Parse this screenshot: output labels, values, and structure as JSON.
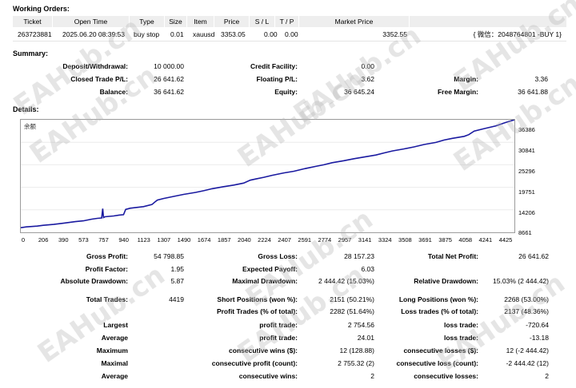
{
  "working_orders": {
    "title": "Working Orders:",
    "headers": [
      "Ticket",
      "Open Time",
      "Type",
      "Size",
      "Item",
      "Price",
      "S / L",
      "T / P",
      "Market Price",
      ""
    ],
    "row": [
      "263723881",
      "2025.06.20 08:39:53",
      "buy stop",
      "0.01",
      "xauusd",
      "3353.05",
      "0.00",
      "0.00",
      "3352.55",
      "{ 微信：2048764801 -BUY 1}"
    ]
  },
  "summary": {
    "title": "Summary:",
    "deposit_label": "Deposit/Withdrawal:",
    "deposit_value": "10 000.00",
    "credit_label": "Credit Facility:",
    "credit_value": "0.00",
    "closed_pl_label": "Closed Trade P/L:",
    "closed_pl_value": "26 641.62",
    "floating_label": "Floating P/L:",
    "floating_value": "3.62",
    "margin_label": "Margin:",
    "margin_value": "3.36",
    "balance_label": "Balance:",
    "balance_value": "36 641.62",
    "equity_label": "Equity:",
    "equity_value": "36 645.24",
    "free_margin_label": "Free Margin:",
    "free_margin_value": "36 641.88"
  },
  "details": {
    "title": "Details:",
    "rows": [
      {
        "c1l": "Gross Profit:",
        "c1v": "54 798.85",
        "c2l": "Gross Loss:",
        "c2v": "28 157.23",
        "c3l": "Total Net Profit:",
        "c3v": "26 641.62"
      },
      {
        "c1l": "Profit Factor:",
        "c1v": "1.95",
        "c2l": "Expected Payoff:",
        "c2v": "6.03",
        "c3l": "",
        "c3v": ""
      },
      {
        "c1l": "Absolute Drawdown:",
        "c1v": "5.87",
        "c2l": "Maximal Drawdown:",
        "c2v": "2 444.42 (15.03%)",
        "c3l": "Relative Drawdown:",
        "c3v": "15.03% (2 444.42)"
      },
      {
        "c1l": "Total Trades:",
        "c1v": "4419",
        "c2l": "Short Positions (won %):",
        "c2v": "2151 (50.21%)",
        "c3l": "Long Positions (won %):",
        "c3v": "2268 (53.00%)"
      },
      {
        "c1l": "",
        "c1v": "",
        "c2l": "Profit Trades (% of total):",
        "c2v": "2282 (51.64%)",
        "c3l": "Loss trades (% of total):",
        "c3v": "2137 (48.36%)"
      },
      {
        "c1l": "Largest",
        "c1v": "",
        "c2l": "profit trade:",
        "c2v": "2 754.56",
        "c3l": "loss trade:",
        "c3v": "-720.64"
      },
      {
        "c1l": "Average",
        "c1v": "",
        "c2l": "profit trade:",
        "c2v": "24.01",
        "c3l": "loss trade:",
        "c3v": "-13.18"
      },
      {
        "c1l": "Maximum",
        "c1v": "",
        "c2l": "consecutive wins ($):",
        "c2v": "12 (128.88)",
        "c3l": "consecutive losses ($):",
        "c3v": "12 (-2 444.42)"
      },
      {
        "c1l": "Maximal",
        "c1v": "",
        "c2l": "consecutive profit (count):",
        "c2v": "2 755.32 (2)",
        "c3l": "consecutive loss (count):",
        "c3v": "-2 444.42 (12)"
      },
      {
        "c1l": "Average",
        "c1v": "",
        "c2l": "consecutive wins:",
        "c2v": "2",
        "c3l": "consecutive losses:",
        "c3v": "2"
      }
    ]
  },
  "watermark": "EAHub.cn",
  "chart_data": {
    "type": "line",
    "title": "余额",
    "x_ticks": [
      "0",
      "206",
      "390",
      "573",
      "757",
      "940",
      "1123",
      "1307",
      "1490",
      "1674",
      "1857",
      "2040",
      "2224",
      "2407",
      "2591",
      "2774",
      "2957",
      "3141",
      "3324",
      "3508",
      "3691",
      "3875",
      "4058",
      "4241",
      "4425"
    ],
    "y_ticks": [
      "36386",
      "30841",
      "25296",
      "19751",
      "14206",
      "8661"
    ],
    "xlim": [
      0,
      4518
    ],
    "ylim": [
      8661,
      36386
    ],
    "series": [
      {
        "color": "#1a1aa0",
        "x": [
          0,
          50,
          150,
          206,
          300,
          390,
          500,
          573,
          650,
          700,
          740,
          750,
          757,
          770,
          850,
          900,
          940,
          960,
          1000,
          1123,
          1200,
          1230,
          1250,
          1307,
          1400,
          1490,
          1600,
          1674,
          1750,
          1857,
          1950,
          2040,
          2100,
          2150,
          2224,
          2300,
          2407,
          2500,
          2591,
          2700,
          2774,
          2850,
          2957,
          3050,
          3141,
          3250,
          3324,
          3400,
          3508,
          3600,
          3691,
          3800,
          3875,
          3950,
          4058,
          4100,
          4150,
          4241,
          4350,
          4425,
          4518
        ],
        "y": [
          9800,
          10000,
          10200,
          10400,
          10600,
          10900,
          11300,
          11500,
          11900,
          12100,
          12200,
          14500,
          12300,
          12500,
          12700,
          12900,
          13000,
          14300,
          14600,
          15000,
          15500,
          16200,
          16600,
          17000,
          17500,
          18000,
          18500,
          18900,
          19400,
          19900,
          20300,
          20800,
          21500,
          21800,
          22200,
          22700,
          23300,
          23700,
          24300,
          24900,
          25300,
          25800,
          26300,
          26800,
          27200,
          27700,
          28200,
          28700,
          29200,
          29700,
          30300,
          30800,
          31400,
          31800,
          32300,
          32700,
          33600,
          34200,
          34900,
          35600,
          36386
        ]
      }
    ]
  }
}
